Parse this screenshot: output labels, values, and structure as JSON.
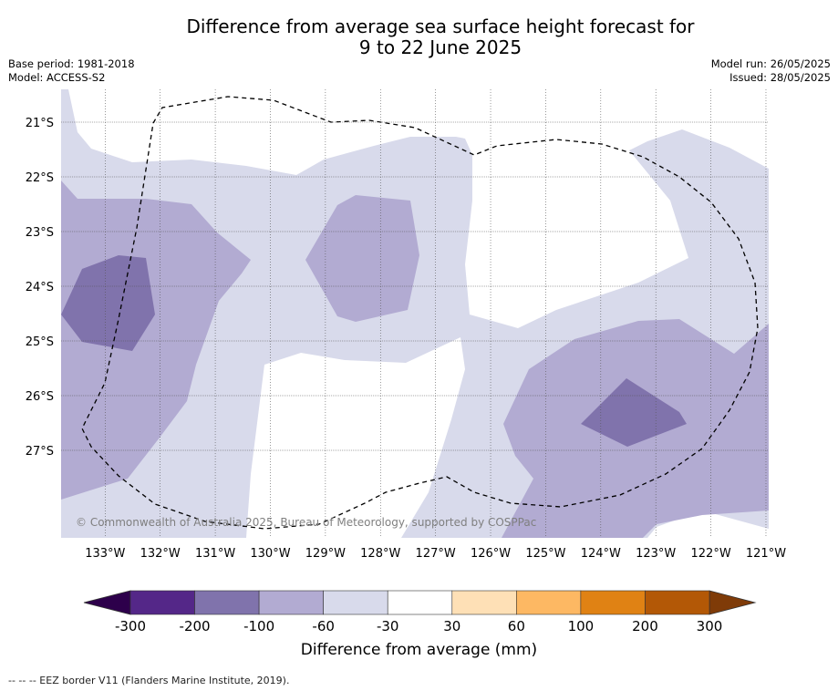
{
  "title_line1": "Difference from average sea surface height forecast for",
  "title_line2": "9 to 22 June 2025",
  "meta_left": {
    "base_period": "Base period: 1981-2018",
    "model": "Model: ACCESS-S2"
  },
  "meta_right": {
    "model_run": "Model run: 26/05/2025",
    "issued": "Issued: 28/05/2025"
  },
  "copyright": "© Commonwealth of Australia 2025, Bureau of Meteorology, supported by COSPPac",
  "colorbar_label": "Difference from average (mm)",
  "footnote": "--  --  -- EEZ border V11 (Flanders Marine Institute, 2019).",
  "chart_data": {
    "type": "heatmap",
    "x_ticks": [
      "133°W",
      "132°W",
      "131°W",
      "130°W",
      "129°W",
      "128°W",
      "127°W",
      "126°W",
      "125°W",
      "124°W",
      "123°W",
      "122°W",
      "121°W"
    ],
    "x_values": [
      -133,
      -132,
      -131,
      -130,
      -129,
      -128,
      -127,
      -126,
      -125,
      -124,
      -123,
      -122,
      -121
    ],
    "y_ticks": [
      "21°S",
      "22°S",
      "23°S",
      "24°S",
      "25°S",
      "26°S",
      "27°S"
    ],
    "y_values": [
      -21,
      -22,
      -23,
      -24,
      -25,
      -26,
      -27
    ],
    "xlim": [
      -133.8,
      -120.95
    ],
    "ylim": [
      -28.6,
      -20.4
    ],
    "grid": true,
    "colorbar": {
      "tick_labels": [
        "-300",
        "-200",
        "-100",
        "-60",
        "-30",
        "30",
        "60",
        "100",
        "200",
        "300"
      ],
      "colors": [
        "#542788",
        "#8073ac",
        "#b2abd2",
        "#d8daeb",
        "#ffffff",
        "#fee0b6",
        "#fdb863",
        "#e08214",
        "#b35806"
      ],
      "extend_low_color": "#2d004b",
      "extend_high_color": "#7f3b08"
    }
  }
}
